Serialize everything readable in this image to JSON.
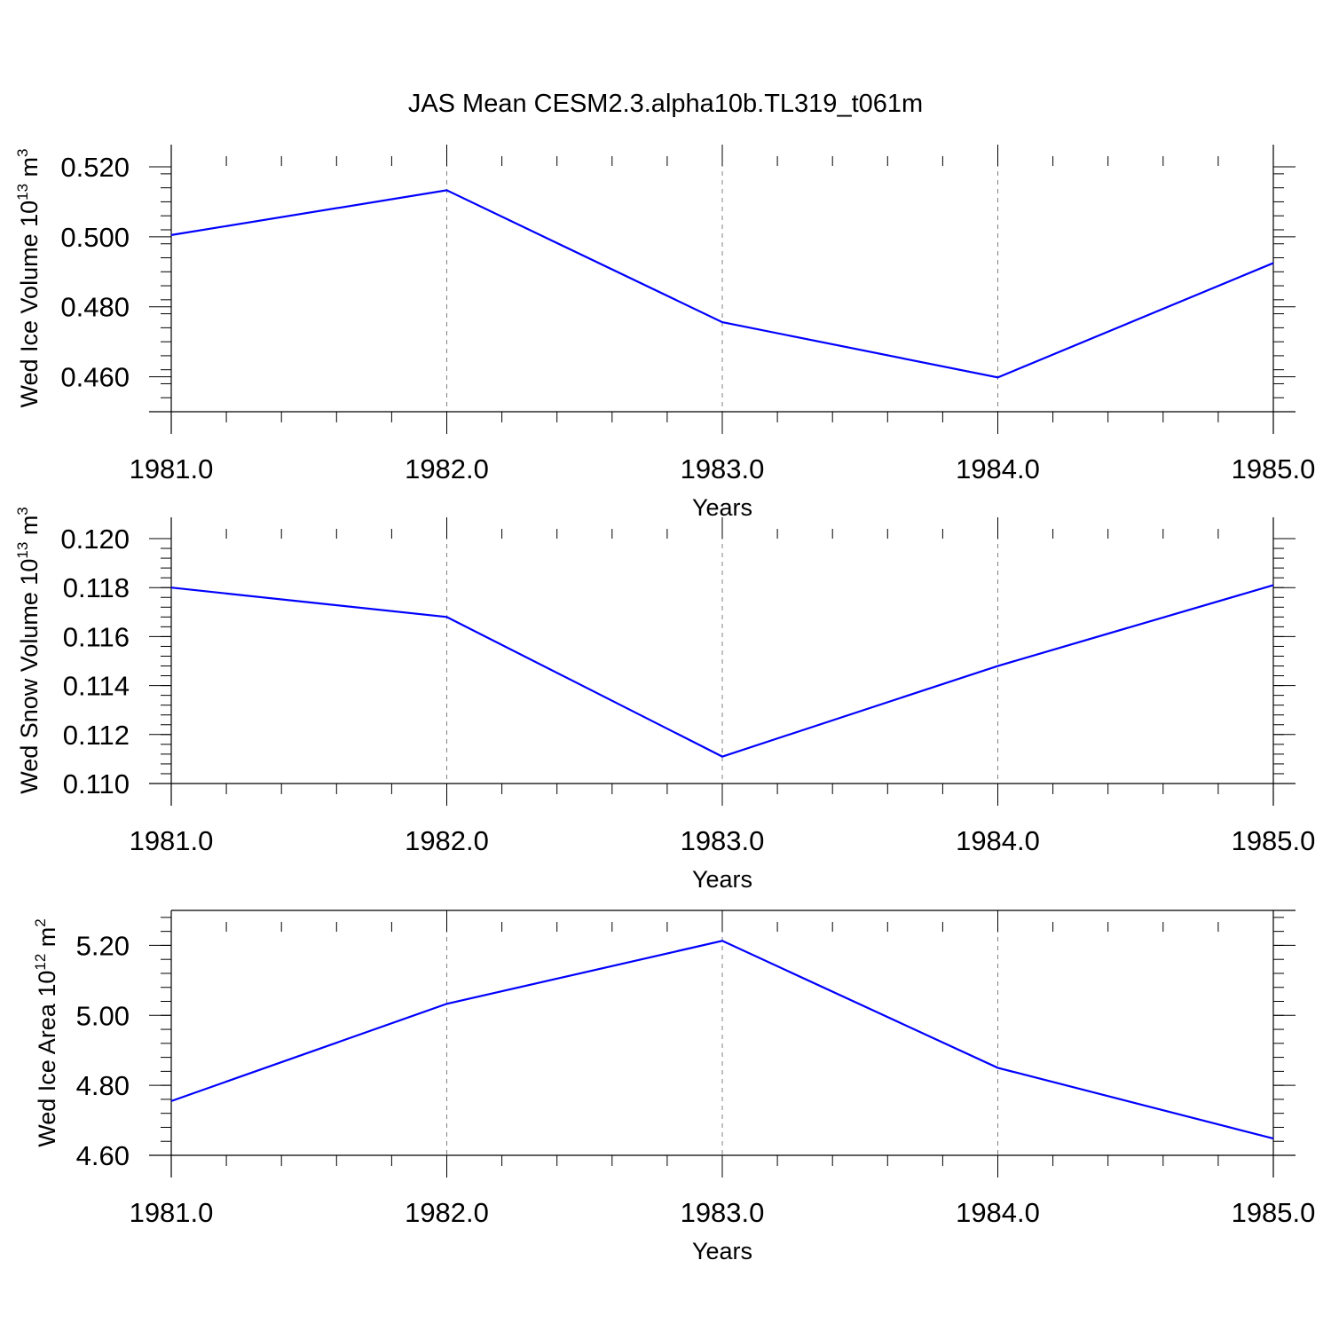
{
  "title": "JAS Mean CESM2.3.alpha10b.TL319_t061m",
  "colors": {
    "line": "#0000ff",
    "axis": "#000000",
    "grid": "#808080"
  },
  "chart_data": [
    {
      "type": "line",
      "xlabel": "Years",
      "ylabel": {
        "prefix": "Wed Ice Volume 10",
        "exp": "13",
        "unit": " m",
        "unit_exp": "3"
      },
      "x": [
        1981,
        1982,
        1983,
        1984,
        1985
      ],
      "x_tick_labels": [
        "1981.0",
        "1982.0",
        "1983.0",
        "1984.0",
        "1985.0"
      ],
      "values": [
        0.5005,
        0.5133,
        0.4756,
        0.4598,
        0.4925
      ],
      "y_ticks": [
        0.46,
        0.48,
        0.5,
        0.52
      ],
      "y_tick_labels": [
        "0.460",
        "0.480",
        "0.500",
        "0.520"
      ],
      "xlim": [
        1981,
        1985
      ],
      "ylim": [
        0.45,
        0.52
      ],
      "x_gridlines": true
    },
    {
      "type": "line",
      "xlabel": "Years",
      "ylabel": {
        "prefix": "Wed Snow Volume 10",
        "exp": "13",
        "unit": " m",
        "unit_exp": "3"
      },
      "x": [
        1981,
        1982,
        1983,
        1984,
        1985
      ],
      "x_tick_labels": [
        "1981.0",
        "1982.0",
        "1983.0",
        "1984.0",
        "1985.0"
      ],
      "values": [
        0.118,
        0.1168,
        0.1111,
        0.1148,
        0.1181
      ],
      "y_ticks": [
        0.11,
        0.112,
        0.114,
        0.116,
        0.118,
        0.12
      ],
      "y_tick_labels": [
        "0.110",
        "0.112",
        "0.114",
        "0.116",
        "0.118",
        "0.120"
      ],
      "xlim": [
        1981,
        1985
      ],
      "ylim": [
        0.11,
        0.12
      ],
      "x_gridlines": true
    },
    {
      "type": "line",
      "xlabel": "Years",
      "ylabel": {
        "prefix": "Wed Ice Area 10",
        "exp": "12",
        "unit": " m",
        "unit_exp": "2"
      },
      "x": [
        1981,
        1982,
        1983,
        1984,
        1985
      ],
      "x_tick_labels": [
        "1981.0",
        "1982.0",
        "1983.0",
        "1984.0",
        "1985.0"
      ],
      "values": [
        4.755,
        5.033,
        5.213,
        4.85,
        4.648
      ],
      "y_ticks": [
        4.6,
        4.8,
        5.0,
        5.2
      ],
      "y_tick_labels": [
        "4.60",
        "4.80",
        "5.00",
        "5.20"
      ],
      "xlim": [
        1981,
        1985
      ],
      "ylim": [
        4.6,
        5.3
      ],
      "x_gridlines": true
    }
  ]
}
